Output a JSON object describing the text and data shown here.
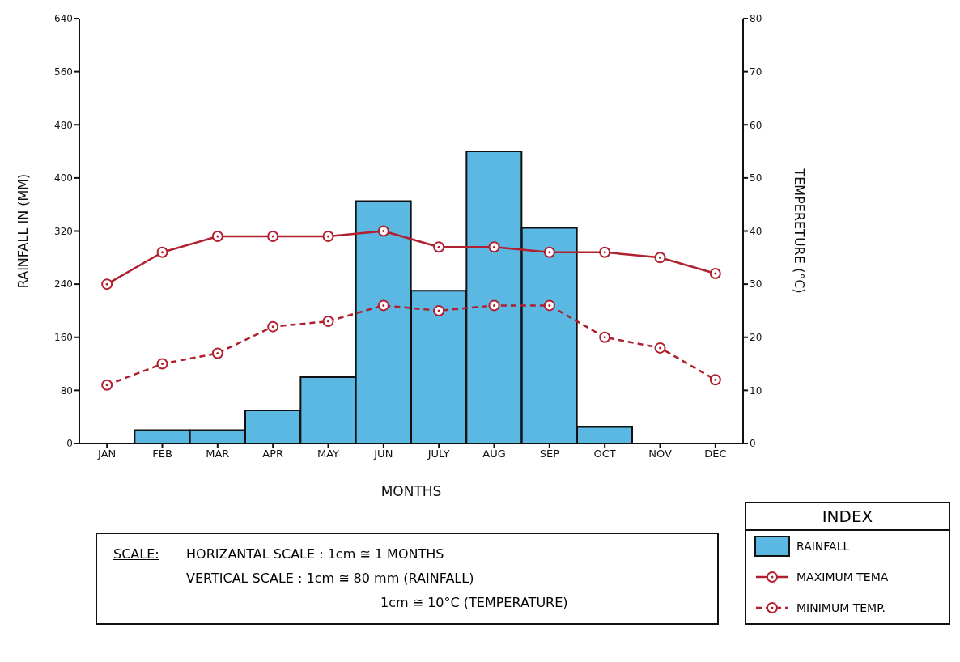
{
  "chart_data": {
    "type": "bar",
    "categories": [
      "JAN",
      "FEB",
      "MAR",
      "APR",
      "MAY",
      "JUN",
      "JULY",
      "AUG",
      "SEP",
      "OCT",
      "NOV",
      "DEC"
    ],
    "series": [
      {
        "name": "RAINFALL",
        "color": "#5bb8e3",
        "values": [
          0,
          20,
          20,
          50,
          100,
          365,
          230,
          440,
          325,
          25,
          0,
          0
        ]
      },
      {
        "name": "MAXIMUM TEMA",
        "type": "line",
        "axis": "y2",
        "color": "#b0202e",
        "line_style": "solid",
        "marker": "circle",
        "values": [
          30,
          36,
          39,
          39,
          39,
          40,
          37,
          37,
          36,
          36,
          35,
          32
        ]
      },
      {
        "name": "MINIMUM TEMP.",
        "type": "line",
        "axis": "y2",
        "color": "#b0202e",
        "line_style": "dashed",
        "marker": "circle",
        "values": [
          11,
          15,
          17,
          22,
          23,
          26,
          25,
          26,
          26,
          20,
          18,
          12
        ]
      }
    ],
    "xlabel": "MONTHS",
    "ylabel": "RAINFALL IN (MM)",
    "y2label": "TEMPERETURE (°C)",
    "legend_title": "INDEX",
    "ylim": [
      0,
      640
    ],
    "yticks": [
      0,
      80,
      160,
      240,
      320,
      400,
      480,
      560,
      640
    ],
    "y2lim": [
      0,
      80
    ],
    "y2ticks": [
      0,
      10,
      20,
      30,
      40,
      50,
      60,
      70,
      80
    ],
    "grid": false,
    "legend": "bottom right",
    "annotations": [
      "SCALE:",
      "HORIZANTAL SCALE : 1cm ≅ 1 MONTHS",
      "VERTICAL SCALE : 1cm ≅ 80 mm (RAINFALL)",
      "1cm ≅ 10°C (TEMPERATURE)"
    ]
  }
}
